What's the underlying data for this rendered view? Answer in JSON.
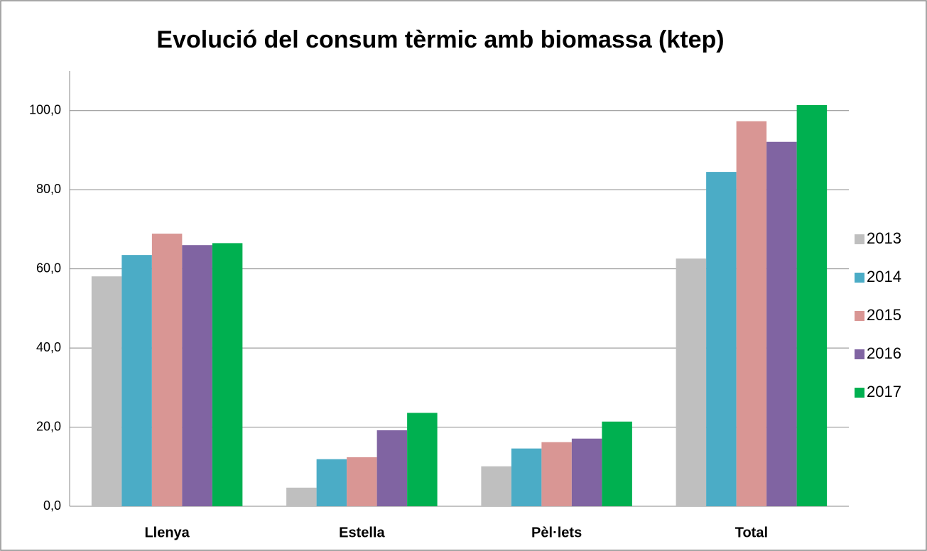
{
  "chart_data": {
    "type": "bar",
    "title": "Evolució del consum tèrmic amb biomassa (ktep)",
    "categories": [
      "Llenya",
      "Estella",
      "Pèl·lets",
      "Total"
    ],
    "series": [
      {
        "name": "2013",
        "color": "#bfbfbf",
        "values": [
          58.1,
          4.7,
          10.1,
          62.6
        ]
      },
      {
        "name": "2014",
        "color": "#4bacc6",
        "values": [
          63.5,
          11.9,
          14.6,
          84.5
        ]
      },
      {
        "name": "2015",
        "color": "#d99694",
        "values": [
          68.9,
          12.4,
          16.2,
          97.3
        ]
      },
      {
        "name": "2016",
        "color": "#8064a2",
        "values": [
          66.0,
          19.2,
          17.1,
          92.1
        ]
      },
      {
        "name": "2017",
        "color": "#00b050",
        "values": [
          66.5,
          23.6,
          21.4,
          101.4
        ]
      }
    ],
    "ylim": [
      0,
      110
    ],
    "yticks": [
      {
        "value": 0,
        "label": "0,0"
      },
      {
        "value": 20,
        "label": "20,0"
      },
      {
        "value": 40,
        "label": "40,0"
      },
      {
        "value": 60,
        "label": "60,0"
      },
      {
        "value": 80,
        "label": "80,0"
      },
      {
        "value": 100,
        "label": "100,0"
      }
    ],
    "grid": true,
    "legend": "right"
  }
}
